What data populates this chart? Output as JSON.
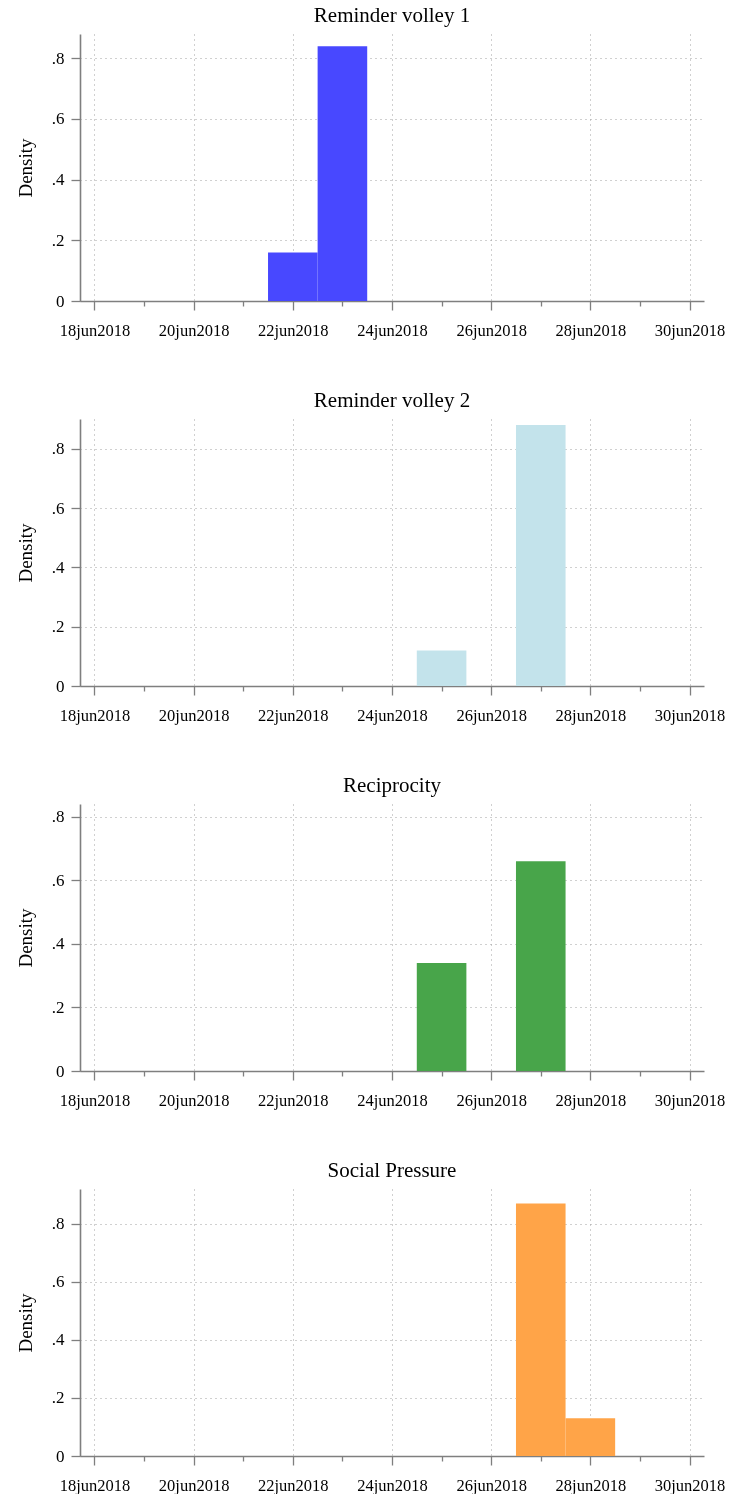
{
  "chart_data": [
    {
      "type": "histogram",
      "title": "Reminder volley 1",
      "ylabel": "Density",
      "bins": [
        "2018-06-21T12:00",
        "2018-06-22T12:00",
        "2018-06-23T12:00"
      ],
      "values": [
        0.16,
        0.84
      ],
      "color": "#4848ff",
      "xlim": [
        "2018-06-17T17:00",
        "2018-06-30T07:00"
      ],
      "xticks": [
        {
          "value": "2018-06-18",
          "label": "18jun2018"
        },
        {
          "value": "2018-06-19",
          "label": null
        },
        {
          "value": "2018-06-20",
          "label": "20jun2018"
        },
        {
          "value": "2018-06-21",
          "label": null
        },
        {
          "value": "2018-06-22",
          "label": "22jun2018"
        },
        {
          "value": "2018-06-23",
          "label": null
        },
        {
          "value": "2018-06-24",
          "label": "24jun2018"
        },
        {
          "value": "2018-06-25",
          "label": null
        },
        {
          "value": "2018-06-26",
          "label": "26jun2018"
        },
        {
          "value": "2018-06-27",
          "label": null
        },
        {
          "value": "2018-06-28",
          "label": "28jun2018"
        },
        {
          "value": "2018-06-29",
          "label": null
        },
        {
          "value": "2018-06-30",
          "label": "30jun2018"
        }
      ],
      "ylim": [
        0,
        0.88
      ],
      "yticks": [
        0,
        {
          "value": 0.2,
          "label": ".2"
        },
        {
          "value": 0.4,
          "label": ".4"
        },
        {
          "value": 0.6,
          "label": ".6"
        },
        {
          "value": 0.8,
          "label": ".8"
        }
      ],
      "grid": true
    },
    {
      "type": "histogram",
      "title": "Reminder volley 2",
      "ylabel": "Density",
      "bins": [
        "2018-06-24T12:00",
        "2018-06-25T12:00",
        "2018-06-26T12:00",
        "2018-06-27T12:00"
      ],
      "values": [
        0.12,
        0,
        0.88
      ],
      "color": "#c3e3eb",
      "xlim": [
        "2018-06-17T17:00",
        "2018-06-30T07:00"
      ],
      "xticks": [
        {
          "value": "2018-06-18",
          "label": "18jun2018"
        },
        {
          "value": "2018-06-19",
          "label": null
        },
        {
          "value": "2018-06-20",
          "label": "20jun2018"
        },
        {
          "value": "2018-06-21",
          "label": null
        },
        {
          "value": "2018-06-22",
          "label": "22jun2018"
        },
        {
          "value": "2018-06-23",
          "label": null
        },
        {
          "value": "2018-06-24",
          "label": "24jun2018"
        },
        {
          "value": "2018-06-25",
          "label": null
        },
        {
          "value": "2018-06-26",
          "label": "26jun2018"
        },
        {
          "value": "2018-06-27",
          "label": null
        },
        {
          "value": "2018-06-28",
          "label": "28jun2018"
        },
        {
          "value": "2018-06-29",
          "label": null
        },
        {
          "value": "2018-06-30",
          "label": "30jun2018"
        }
      ],
      "ylim": [
        0,
        0.9
      ],
      "yticks": [
        0,
        {
          "value": 0.2,
          "label": ".2"
        },
        {
          "value": 0.4,
          "label": ".4"
        },
        {
          "value": 0.6,
          "label": ".6"
        },
        {
          "value": 0.8,
          "label": ".8"
        }
      ],
      "grid": true
    },
    {
      "type": "histogram",
      "title": "Reciprocity",
      "ylabel": "Density",
      "bins": [
        "2018-06-24T12:00",
        "2018-06-25T12:00",
        "2018-06-26T12:00",
        "2018-06-27T12:00"
      ],
      "values": [
        0.34,
        0,
        0.66
      ],
      "color": "#48a54a",
      "xlim": [
        "2018-06-17T17:00",
        "2018-06-30T07:00"
      ],
      "xticks": [
        {
          "value": "2018-06-18",
          "label": "18jun2018"
        },
        {
          "value": "2018-06-19",
          "label": null
        },
        {
          "value": "2018-06-20",
          "label": "20jun2018"
        },
        {
          "value": "2018-06-21",
          "label": null
        },
        {
          "value": "2018-06-22",
          "label": "22jun2018"
        },
        {
          "value": "2018-06-23",
          "label": null
        },
        {
          "value": "2018-06-24",
          "label": "24jun2018"
        },
        {
          "value": "2018-06-25",
          "label": null
        },
        {
          "value": "2018-06-26",
          "label": "26jun2018"
        },
        {
          "value": "2018-06-27",
          "label": null
        },
        {
          "value": "2018-06-28",
          "label": "28jun2018"
        },
        {
          "value": "2018-06-29",
          "label": null
        },
        {
          "value": "2018-06-30",
          "label": "30jun2018"
        }
      ],
      "ylim": [
        0,
        0.84
      ],
      "yticks": [
        0,
        {
          "value": 0.2,
          "label": ".2"
        },
        {
          "value": 0.4,
          "label": ".4"
        },
        {
          "value": 0.6,
          "label": ".6"
        },
        {
          "value": 0.8,
          "label": ".8"
        }
      ],
      "grid": true
    },
    {
      "type": "histogram",
      "title": "Social Pressure",
      "ylabel": "Density",
      "bins": [
        "2018-06-26T12:00",
        "2018-06-27T12:00",
        "2018-06-28T12:00"
      ],
      "values": [
        0.87,
        0.13
      ],
      "color": "#ffa448",
      "xlim": [
        "2018-06-17T17:00",
        "2018-06-30T07:00"
      ],
      "xticks": [
        {
          "value": "2018-06-18",
          "label": "18jun2018"
        },
        {
          "value": "2018-06-19",
          "label": null
        },
        {
          "value": "2018-06-20",
          "label": "20jun2018"
        },
        {
          "value": "2018-06-21",
          "label": null
        },
        {
          "value": "2018-06-22",
          "label": "22jun2018"
        },
        {
          "value": "2018-06-23",
          "label": null
        },
        {
          "value": "2018-06-24",
          "label": "24jun2018"
        },
        {
          "value": "2018-06-25",
          "label": null
        },
        {
          "value": "2018-06-26",
          "label": "26jun2018"
        },
        {
          "value": "2018-06-27",
          "label": null
        },
        {
          "value": "2018-06-28",
          "label": "28jun2018"
        },
        {
          "value": "2018-06-29",
          "label": null
        },
        {
          "value": "2018-06-30",
          "label": "30jun2018"
        }
      ],
      "ylim": [
        0,
        0.92
      ],
      "yticks": [
        0,
        {
          "value": 0.2,
          "label": ".2"
        },
        {
          "value": 0.4,
          "label": ".4"
        },
        {
          "value": 0.6,
          "label": ".6"
        },
        {
          "value": 0.8,
          "label": ".8"
        }
      ],
      "grid": true
    }
  ]
}
